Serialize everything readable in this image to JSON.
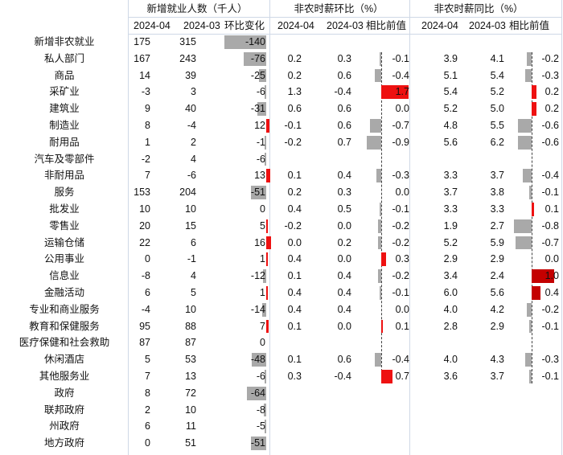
{
  "groups": {
    "employment": "新增就业人数（千人）",
    "mom_wage": "非农时薪环比（%）",
    "yoy_wage": "非农时薪同比（%）"
  },
  "subheaders": {
    "emp_cur": "2024-04",
    "emp_prev": "2024-03",
    "emp_change": "环比变化",
    "mom_cur": "2024-04",
    "mom_prev": "2024-03",
    "mom_diff": "相比前值",
    "yoy_cur": "2024-04",
    "yoy_prev": "2024-03",
    "yoy_diff": "相比前值"
  },
  "colors": {
    "positive_bar": "#ee1111",
    "negative_bar": "#a9a9a9",
    "strong_positive_bar": "#c40000",
    "grid": "#cfd8e6"
  },
  "chart_data": {
    "type": "table",
    "rows": [
      {
        "label": "新增非农就业",
        "emp_cur": "175",
        "emp_prev": "315",
        "emp_change": "-140",
        "mom_cur": "",
        "mom_prev": "",
        "mom_diff": "",
        "yoy_cur": "",
        "yoy_prev": "",
        "yoy_diff": ""
      },
      {
        "label": "私人部门",
        "emp_cur": "167",
        "emp_prev": "243",
        "emp_change": "-76",
        "mom_cur": "0.2",
        "mom_prev": "0.3",
        "mom_diff": "-0.1",
        "yoy_cur": "3.9",
        "yoy_prev": "4.1",
        "yoy_diff": "-0.2"
      },
      {
        "label": "商品",
        "emp_cur": "14",
        "emp_prev": "39",
        "emp_change": "-25",
        "mom_cur": "0.2",
        "mom_prev": "0.6",
        "mom_diff": "-0.4",
        "yoy_cur": "5.1",
        "yoy_prev": "5.4",
        "yoy_diff": "-0.3"
      },
      {
        "label": "采矿业",
        "emp_cur": "-3",
        "emp_prev": "3",
        "emp_change": "-6",
        "mom_cur": "1.3",
        "mom_prev": "-0.4",
        "mom_diff": "1.7",
        "yoy_cur": "5.4",
        "yoy_prev": "5.2",
        "yoy_diff": "0.2"
      },
      {
        "label": "建筑业",
        "emp_cur": "9",
        "emp_prev": "40",
        "emp_change": "-31",
        "mom_cur": "0.6",
        "mom_prev": "0.6",
        "mom_diff": "0.0",
        "yoy_cur": "5.2",
        "yoy_prev": "5.0",
        "yoy_diff": "0.2"
      },
      {
        "label": "制造业",
        "emp_cur": "8",
        "emp_prev": "-4",
        "emp_change": "12",
        "mom_cur": "-0.1",
        "mom_prev": "0.6",
        "mom_diff": "-0.7",
        "yoy_cur": "4.8",
        "yoy_prev": "5.5",
        "yoy_diff": "-0.6"
      },
      {
        "label": "耐用品",
        "emp_cur": "1",
        "emp_prev": "2",
        "emp_change": "-1",
        "mom_cur": "-0.2",
        "mom_prev": "0.7",
        "mom_diff": "-0.9",
        "yoy_cur": "5.6",
        "yoy_prev": "6.2",
        "yoy_diff": "-0.6"
      },
      {
        "label": "汽车及零部件",
        "emp_cur": "-2",
        "emp_prev": "4",
        "emp_change": "-6",
        "mom_cur": "",
        "mom_prev": "",
        "mom_diff": "",
        "yoy_cur": "",
        "yoy_prev": "",
        "yoy_diff": ""
      },
      {
        "label": "非耐用品",
        "emp_cur": "7",
        "emp_prev": "-6",
        "emp_change": "13",
        "mom_cur": "0.1",
        "mom_prev": "0.4",
        "mom_diff": "-0.3",
        "yoy_cur": "3.3",
        "yoy_prev": "3.7",
        "yoy_diff": "-0.4"
      },
      {
        "label": "服务",
        "emp_cur": "153",
        "emp_prev": "204",
        "emp_change": "-51",
        "mom_cur": "0.2",
        "mom_prev": "0.3",
        "mom_diff": "0.0",
        "yoy_cur": "3.7",
        "yoy_prev": "3.8",
        "yoy_diff": "-0.1"
      },
      {
        "label": "批发业",
        "emp_cur": "10",
        "emp_prev": "10",
        "emp_change": "0",
        "mom_cur": "0.4",
        "mom_prev": "0.5",
        "mom_diff": "-0.1",
        "yoy_cur": "3.3",
        "yoy_prev": "3.3",
        "yoy_diff": "0.1"
      },
      {
        "label": "零售业",
        "emp_cur": "20",
        "emp_prev": "15",
        "emp_change": "5",
        "mom_cur": "-0.2",
        "mom_prev": "0.0",
        "mom_diff": "-0.2",
        "yoy_cur": "1.9",
        "yoy_prev": "2.7",
        "yoy_diff": "-0.8"
      },
      {
        "label": "运输仓储",
        "emp_cur": "22",
        "emp_prev": "6",
        "emp_change": "16",
        "mom_cur": "0.0",
        "mom_prev": "0.2",
        "mom_diff": "-0.2",
        "yoy_cur": "5.2",
        "yoy_prev": "5.9",
        "yoy_diff": "-0.7"
      },
      {
        "label": "公用事业",
        "emp_cur": "0",
        "emp_prev": "-1",
        "emp_change": "1",
        "mom_cur": "0.4",
        "mom_prev": "0.0",
        "mom_diff": "0.3",
        "yoy_cur": "2.9",
        "yoy_prev": "2.9",
        "yoy_diff": "0.0"
      },
      {
        "label": "信息业",
        "emp_cur": "-8",
        "emp_prev": "4",
        "emp_change": "-12",
        "mom_cur": "0.1",
        "mom_prev": "0.4",
        "mom_diff": "-0.2",
        "yoy_cur": "3.4",
        "yoy_prev": "2.4",
        "yoy_diff": "1.0"
      },
      {
        "label": "金融活动",
        "emp_cur": "6",
        "emp_prev": "5",
        "emp_change": "1",
        "mom_cur": "0.4",
        "mom_prev": "0.4",
        "mom_diff": "-0.1",
        "yoy_cur": "6.0",
        "yoy_prev": "5.6",
        "yoy_diff": "0.4"
      },
      {
        "label": "专业和商业服务",
        "emp_cur": "-4",
        "emp_prev": "10",
        "emp_change": "-14",
        "mom_cur": "0.4",
        "mom_prev": "0.4",
        "mom_diff": "0.0",
        "yoy_cur": "4.0",
        "yoy_prev": "4.2",
        "yoy_diff": "-0.2"
      },
      {
        "label": "教育和保健服务",
        "emp_cur": "95",
        "emp_prev": "88",
        "emp_change": "7",
        "mom_cur": "0.1",
        "mom_prev": "0.0",
        "mom_diff": "0.1",
        "yoy_cur": "2.8",
        "yoy_prev": "2.9",
        "yoy_diff": "-0.1"
      },
      {
        "label": "医疗保健和社会救助",
        "emp_cur": "87",
        "emp_prev": "87",
        "emp_change": "0",
        "mom_cur": "",
        "mom_prev": "",
        "mom_diff": "",
        "yoy_cur": "",
        "yoy_prev": "",
        "yoy_diff": ""
      },
      {
        "label": "休闲酒店",
        "emp_cur": "5",
        "emp_prev": "53",
        "emp_change": "-48",
        "mom_cur": "0.1",
        "mom_prev": "0.6",
        "mom_diff": "-0.4",
        "yoy_cur": "4.0",
        "yoy_prev": "4.3",
        "yoy_diff": "-0.3"
      },
      {
        "label": "其他服务业",
        "emp_cur": "7",
        "emp_prev": "13",
        "emp_change": "-6",
        "mom_cur": "0.3",
        "mom_prev": "-0.4",
        "mom_diff": "0.7",
        "yoy_cur": "3.6",
        "yoy_prev": "3.7",
        "yoy_diff": "-0.1"
      },
      {
        "label": "政府",
        "emp_cur": "8",
        "emp_prev": "72",
        "emp_change": "-64",
        "mom_cur": "",
        "mom_prev": "",
        "mom_diff": "",
        "yoy_cur": "",
        "yoy_prev": "",
        "yoy_diff": ""
      },
      {
        "label": "联邦政府",
        "emp_cur": "2",
        "emp_prev": "10",
        "emp_change": "-8",
        "mom_cur": "",
        "mom_prev": "",
        "mom_diff": "",
        "yoy_cur": "",
        "yoy_prev": "",
        "yoy_diff": ""
      },
      {
        "label": "州政府",
        "emp_cur": "6",
        "emp_prev": "11",
        "emp_change": "-5",
        "mom_cur": "",
        "mom_prev": "",
        "mom_diff": "",
        "yoy_cur": "",
        "yoy_prev": "",
        "yoy_diff": ""
      },
      {
        "label": "地方政府",
        "emp_cur": "0",
        "emp_prev": "51",
        "emp_change": "-51",
        "mom_cur": "",
        "mom_prev": "",
        "mom_diff": "",
        "yoy_cur": "",
        "yoy_prev": "",
        "yoy_diff": ""
      }
    ]
  }
}
